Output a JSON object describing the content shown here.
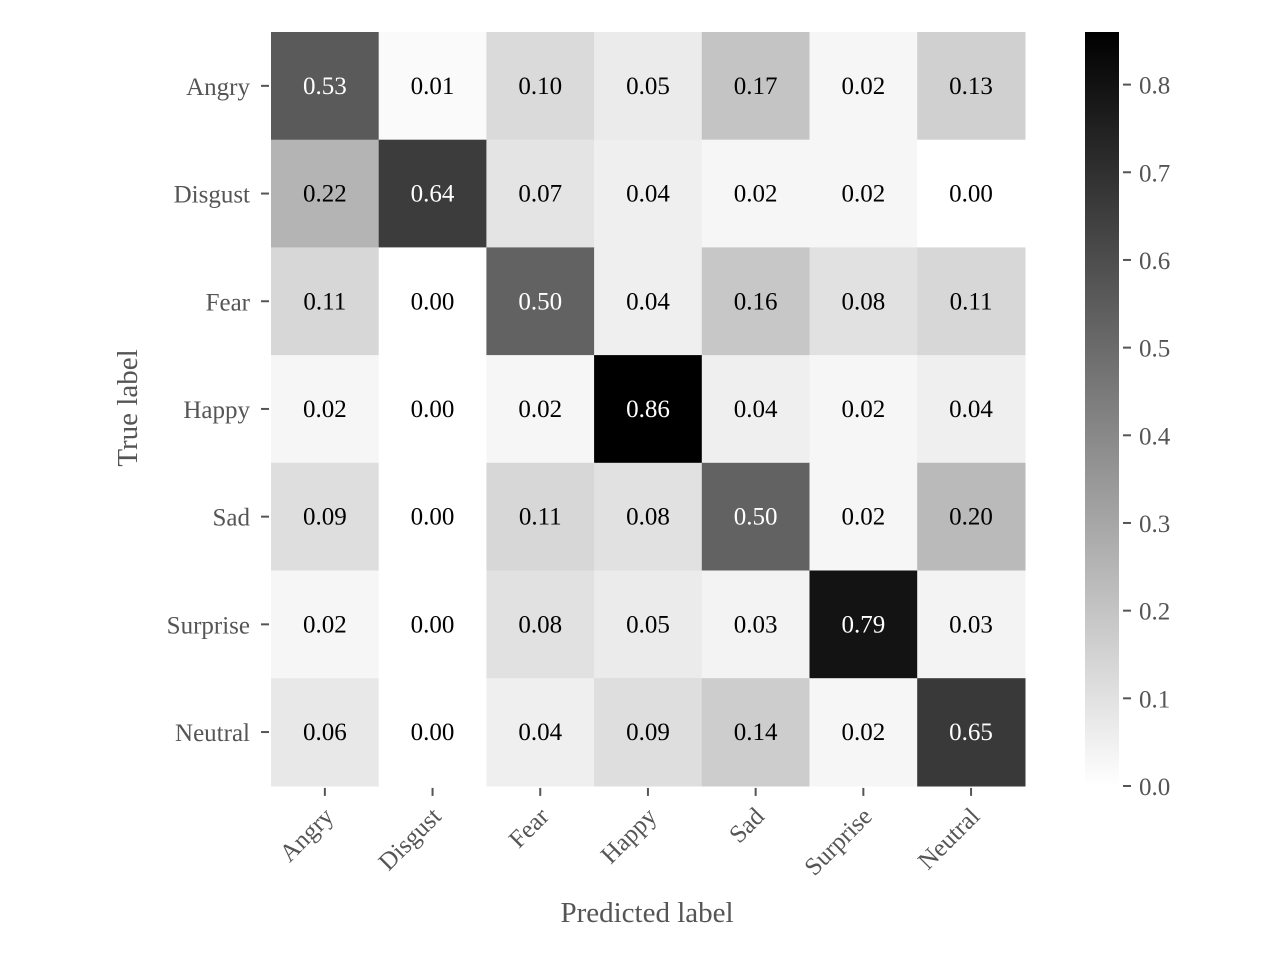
{
  "chart_data": {
    "type": "heatmap",
    "title": "",
    "xlabel": "Predicted label",
    "ylabel": "True label",
    "x_categories": [
      "Angry",
      "Disgust",
      "Fear",
      "Happy",
      "Sad",
      "Surprise",
      "Neutral"
    ],
    "y_categories": [
      "Angry",
      "Disgust",
      "Fear",
      "Happy",
      "Sad",
      "Surprise",
      "Neutral"
    ],
    "values": [
      [
        0.53,
        0.01,
        0.1,
        0.05,
        0.17,
        0.02,
        0.13
      ],
      [
        0.22,
        0.64,
        0.07,
        0.04,
        0.02,
        0.02,
        0.0
      ],
      [
        0.11,
        0.0,
        0.5,
        0.04,
        0.16,
        0.08,
        0.11
      ],
      [
        0.02,
        0.0,
        0.02,
        0.86,
        0.04,
        0.02,
        0.04
      ],
      [
        0.09,
        0.0,
        0.11,
        0.08,
        0.5,
        0.02,
        0.2
      ],
      [
        0.02,
        0.0,
        0.08,
        0.05,
        0.03,
        0.79,
        0.03
      ],
      [
        0.06,
        0.0,
        0.04,
        0.09,
        0.14,
        0.02,
        0.65
      ]
    ],
    "colormap": "Greys",
    "colorbar": {
      "vmin": 0.0,
      "vmax": 0.86,
      "ticks": [
        0.0,
        0.1,
        0.2,
        0.3,
        0.4,
        0.5,
        0.6,
        0.7,
        0.8
      ],
      "tick_labels": [
        "0.0",
        "0.1",
        "0.2",
        "0.3",
        "0.4",
        "0.5",
        "0.6",
        "0.7",
        "0.8"
      ]
    }
  }
}
